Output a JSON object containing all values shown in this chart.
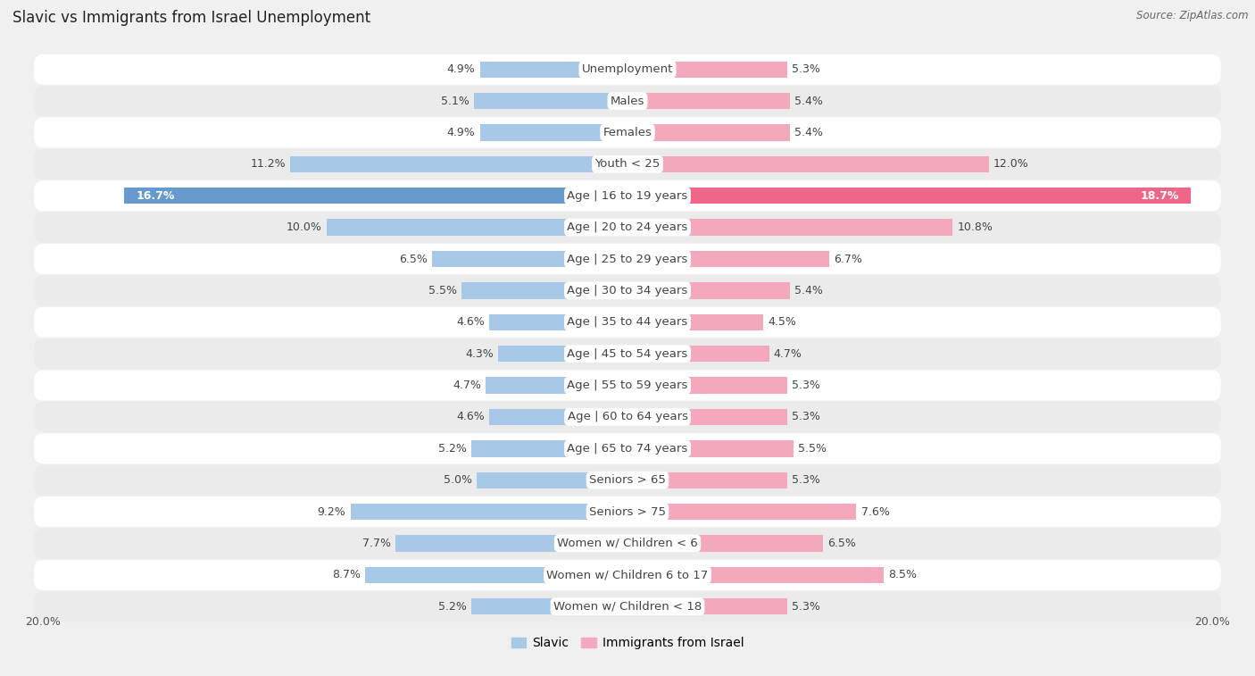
{
  "title": "Slavic vs Immigrants from Israel Unemployment",
  "source": "Source: ZipAtlas.com",
  "categories": [
    "Unemployment",
    "Males",
    "Females",
    "Youth < 25",
    "Age | 16 to 19 years",
    "Age | 20 to 24 years",
    "Age | 25 to 29 years",
    "Age | 30 to 34 years",
    "Age | 35 to 44 years",
    "Age | 45 to 54 years",
    "Age | 55 to 59 years",
    "Age | 60 to 64 years",
    "Age | 65 to 74 years",
    "Seniors > 65",
    "Seniors > 75",
    "Women w/ Children < 6",
    "Women w/ Children 6 to 17",
    "Women w/ Children < 18"
  ],
  "slavic_values": [
    4.9,
    5.1,
    4.9,
    11.2,
    16.7,
    10.0,
    6.5,
    5.5,
    4.6,
    4.3,
    4.7,
    4.6,
    5.2,
    5.0,
    9.2,
    7.7,
    8.7,
    5.2
  ],
  "israel_values": [
    5.3,
    5.4,
    5.4,
    12.0,
    18.7,
    10.8,
    6.7,
    5.4,
    4.5,
    4.7,
    5.3,
    5.3,
    5.5,
    5.3,
    7.6,
    6.5,
    8.5,
    5.3
  ],
  "slavic_color": "#a8c8e8",
  "israel_color": "#f4a8bc",
  "slavic_highlight_color": "#6699cc",
  "israel_highlight_color": "#ee6688",
  "bar_height": 0.52,
  "x_max": 20.0,
  "background_color": "#f0f0f0",
  "row_bg_colors": [
    "#ffffff",
    "#ebebeb"
  ],
  "label_fontsize": 9.5,
  "value_fontsize": 9.0,
  "title_fontsize": 12,
  "source_fontsize": 8.5,
  "legend_slavic": "Slavic",
  "legend_israel": "Immigrants from Israel",
  "footer_tick_label": "20.0%"
}
